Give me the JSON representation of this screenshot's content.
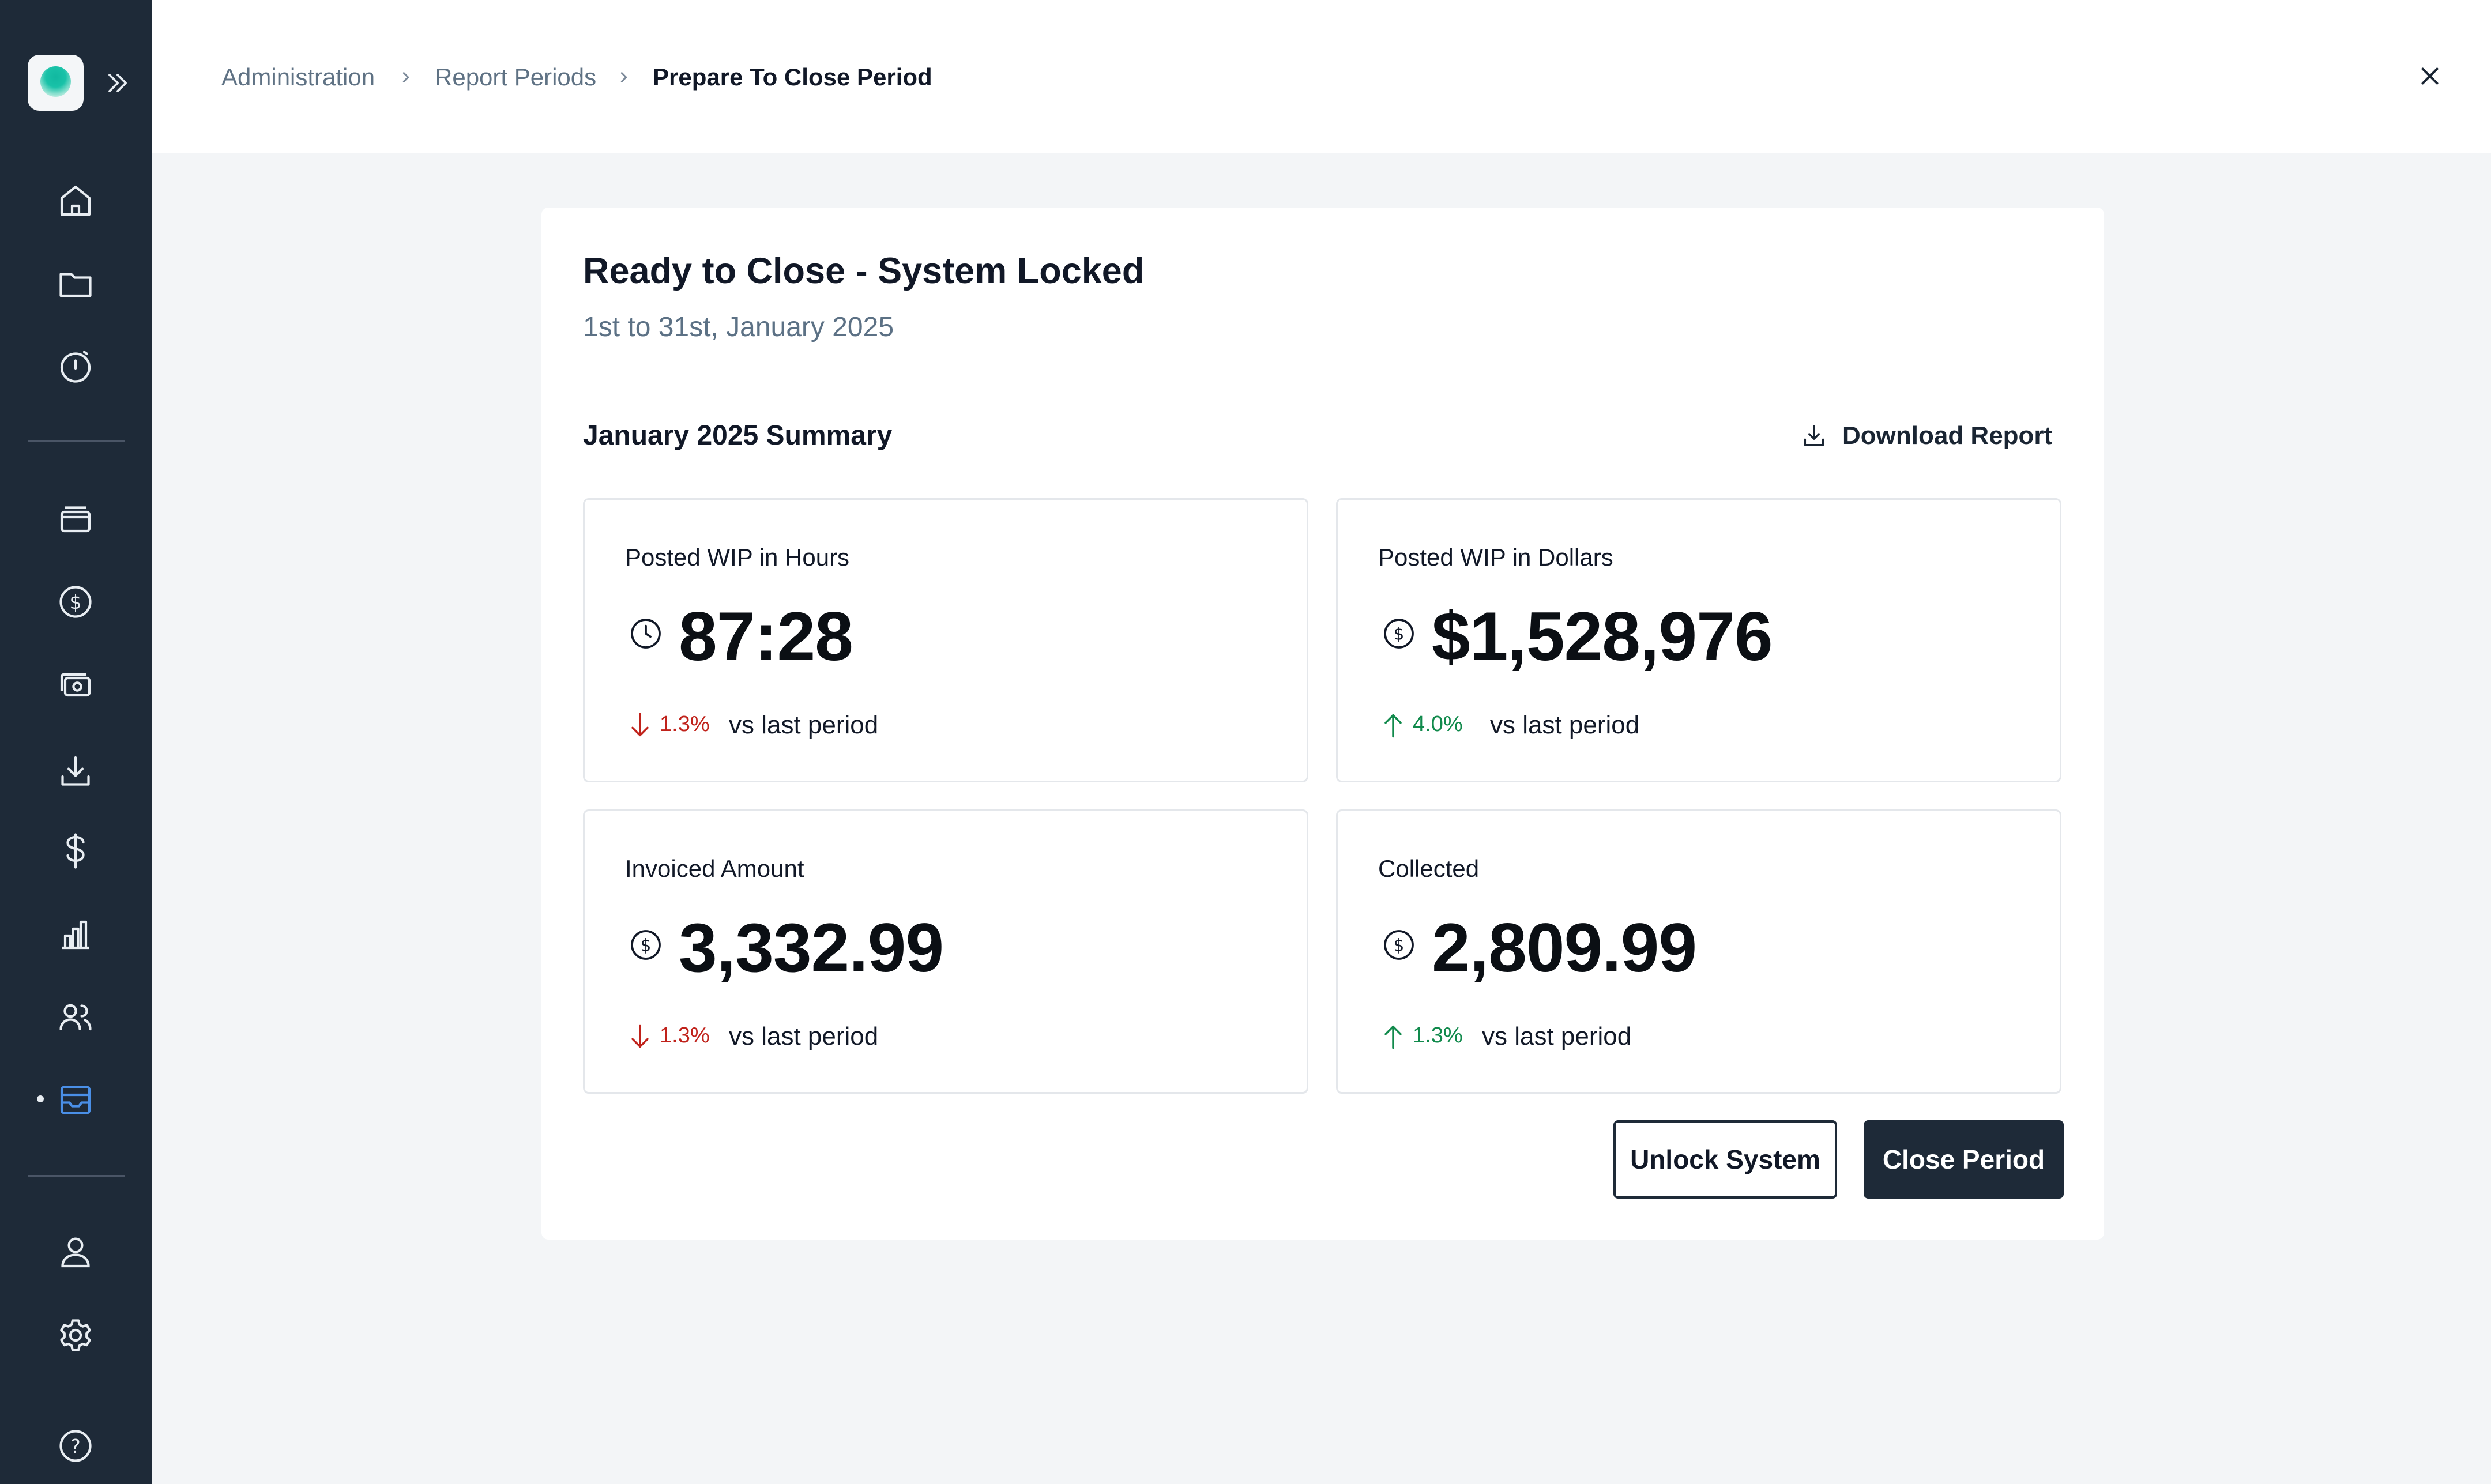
{
  "sidebar": {
    "logo": "app-logo",
    "expand_icon": "double-chevron-right-icon",
    "items": [
      {
        "icon": "home-icon"
      },
      {
        "icon": "folder-icon"
      },
      {
        "icon": "timer-icon"
      },
      {
        "icon": "briefcase-icon"
      },
      {
        "icon": "dollar-circle-icon"
      },
      {
        "icon": "cash-icon"
      },
      {
        "icon": "download-icon"
      },
      {
        "icon": "dollar-icon"
      },
      {
        "icon": "bar-chart-icon"
      },
      {
        "icon": "users-icon"
      },
      {
        "icon": "inbox-icon",
        "active": true
      },
      {
        "icon": "user-icon"
      },
      {
        "icon": "settings-icon"
      },
      {
        "icon": "help-icon"
      }
    ],
    "colors": {
      "background": "#1e2a38",
      "icon": "#e8edf2",
      "active": "#3b82f6"
    }
  },
  "breadcrumb": {
    "items": [
      "Administration",
      "Report Periods",
      "Prepare To Close Period"
    ]
  },
  "card": {
    "title": "Ready to Close - System Locked",
    "subtitle": "1st to 31st, January 2025",
    "summary_title": "January 2025 Summary",
    "download_label": "Download Report",
    "stats": [
      {
        "label": "Posted WIP in Hours",
        "icon": "clock-icon",
        "value": "87:28",
        "trend_dir": "down",
        "trend_pct": "1.3%",
        "trend_text": "vs last period"
      },
      {
        "label": "Posted WIP in Dollars",
        "icon": "dollar-circle-icon",
        "value": "$1,528,976",
        "trend_dir": "up",
        "trend_pct": "4.0%",
        "trend_text": "vs last period"
      },
      {
        "label": "Invoiced Amount",
        "icon": "dollar-circle-icon",
        "value": "3,332.99",
        "trend_dir": "down",
        "trend_pct": "1.3%",
        "trend_text": "vs last period"
      },
      {
        "label": "Collected",
        "icon": "dollar-circle-icon",
        "value": "2,809.99",
        "trend_dir": "up",
        "trend_pct": "1.3%",
        "trend_text": "vs last period"
      }
    ],
    "buttons": {
      "unlock": "Unlock System",
      "close": "Close Period"
    }
  },
  "colors": {
    "accent_dark": "#1e2a38",
    "trend_down": "#c0221b",
    "trend_up": "#118a4c",
    "muted_text": "#5c7185"
  }
}
